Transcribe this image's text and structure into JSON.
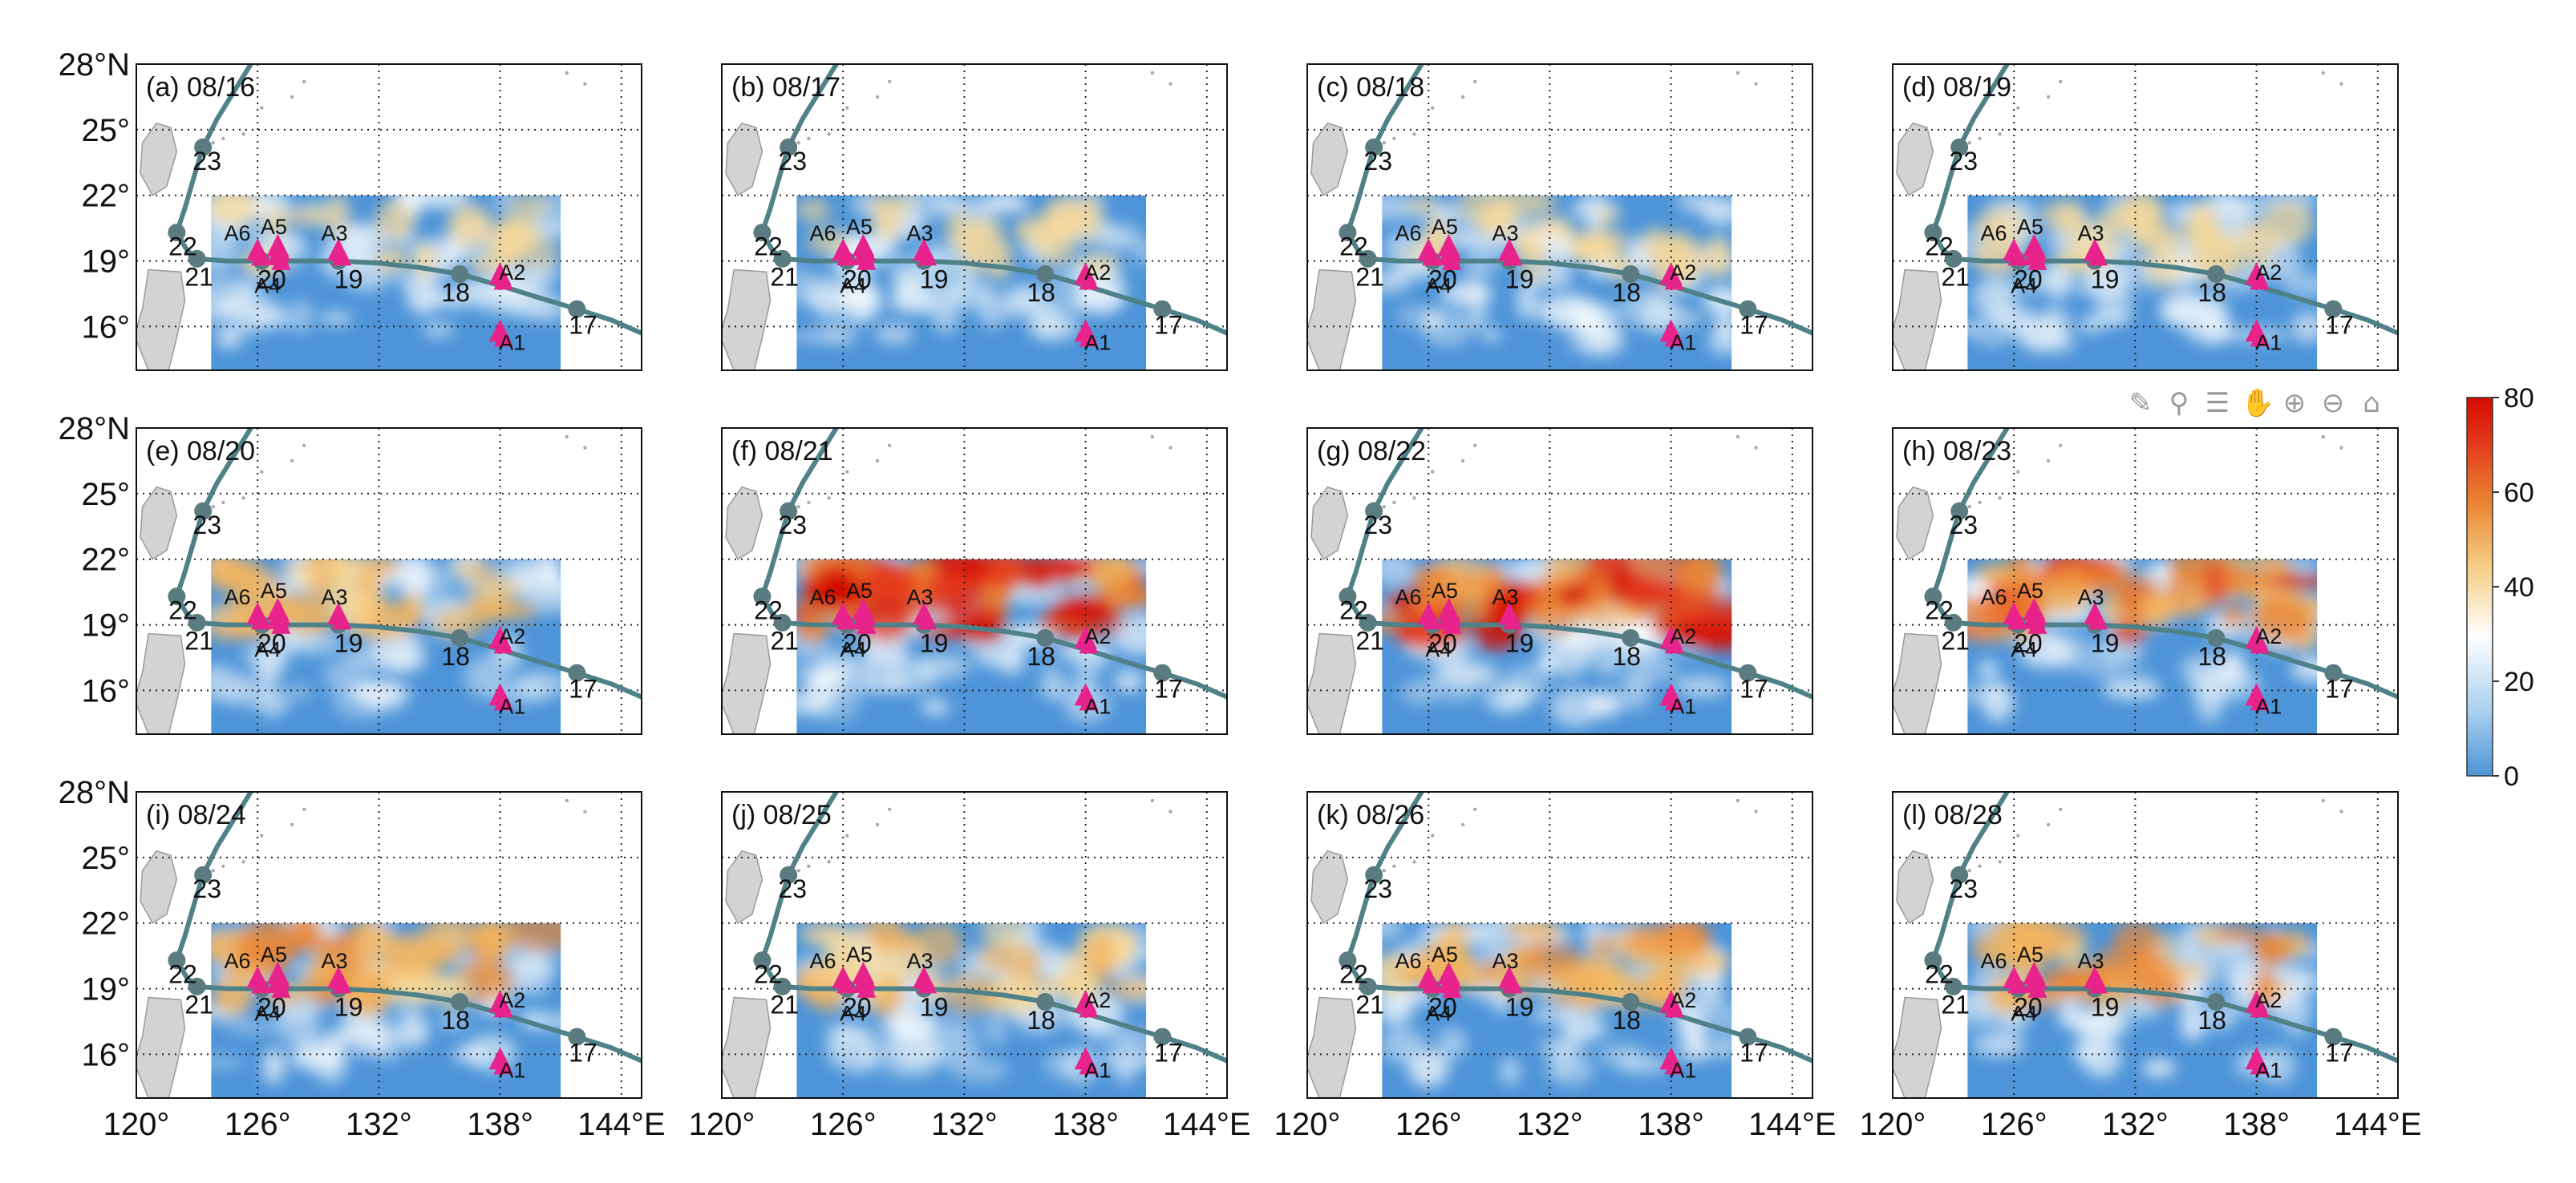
{
  "colors": {
    "track": "#4e8188",
    "track_point": "#5a7b7f",
    "buoy": "#e8238c",
    "land": "#d3d3d3",
    "land_edge": "#9a9a9a",
    "field_low": "#4d94d8"
  },
  "toolbar": {
    "icons": [
      "brush-icon",
      "pin-icon",
      "legend-icon",
      "pan-hand-icon",
      "zoom-in-icon",
      "zoom-out-icon",
      "home-icon"
    ]
  },
  "chart_data": {
    "type": "heatmap",
    "title": "",
    "panels": [
      {
        "label": "(a) 08/16",
        "intensity": 0.12
      },
      {
        "label": "(b) 08/17",
        "intensity": 0.1
      },
      {
        "label": "(c) 08/18",
        "intensity": 0.22
      },
      {
        "label": "(d) 08/19",
        "intensity": 0.18
      },
      {
        "label": "(e) 08/20",
        "intensity": 0.45
      },
      {
        "label": "(f) 08/21",
        "intensity": 0.95
      },
      {
        "label": "(g) 08/22",
        "intensity": 0.9
      },
      {
        "label": "(h) 08/23",
        "intensity": 0.7
      },
      {
        "label": "(i) 08/24",
        "intensity": 0.55
      },
      {
        "label": "(j) 08/25",
        "intensity": 0.4
      },
      {
        "label": "(k) 08/26",
        "intensity": 0.48
      },
      {
        "label": "(l) 08/28",
        "intensity": 0.52
      }
    ],
    "x_axis": {
      "range": [
        120,
        145
      ],
      "ticks": [
        120,
        126,
        132,
        138,
        144
      ],
      "tick_labels": [
        "120°",
        "126°",
        "132°",
        "138°",
        "144°E"
      ]
    },
    "y_axis": {
      "range": [
        14,
        28
      ],
      "ticks": [
        16,
        19,
        22,
        25,
        28
      ],
      "tick_labels": [
        "16°",
        "19°",
        "22°",
        "25°",
        "28°N"
      ]
    },
    "field_extent": {
      "lon": [
        123.7,
        141
      ],
      "lat": [
        14,
        22
      ]
    },
    "typhoon_track": {
      "lon": [
        145.5,
        143.5,
        141.8,
        140.0,
        137.9,
        136.0,
        134.0,
        132.0,
        130.0,
        128.0,
        126.2,
        124.5,
        123.0,
        122.5,
        122.0,
        122.4,
        122.9,
        123.3,
        124.0,
        125.0,
        126.0
      ],
      "lat": [
        15.5,
        16.3,
        16.8,
        17.3,
        17.9,
        18.4,
        18.7,
        18.9,
        19.0,
        19.0,
        19.0,
        19.0,
        19.1,
        19.5,
        20.3,
        21.4,
        23.0,
        24.2,
        25.5,
        27.0,
        28.5
      ]
    },
    "day_markers": [
      {
        "day": "17",
        "lon": 141.8,
        "lat": 16.8,
        "dlon": 0.3,
        "dlat": -0.7
      },
      {
        "day": "18",
        "lon": 136.0,
        "lat": 18.4,
        "dlon": -0.2,
        "dlat": -0.8
      },
      {
        "day": "19",
        "lon": 130.0,
        "lat": 19.0,
        "dlon": 0.5,
        "dlat": -0.8
      },
      {
        "day": "20",
        "lon": 126.2,
        "lat": 19.0,
        "dlon": 0.5,
        "dlat": -0.8
      },
      {
        "day": "21",
        "lon": 123.0,
        "lat": 19.1,
        "dlon": 0.1,
        "dlat": -0.8
      },
      {
        "day": "22",
        "lon": 122.0,
        "lat": 20.3,
        "dlon": 0.3,
        "dlat": -0.6
      },
      {
        "day": "23",
        "lon": 123.3,
        "lat": 24.2,
        "dlon": 0.2,
        "dlat": -0.6
      }
    ],
    "buoys": [
      {
        "name": "A1",
        "lon": 138.0,
        "lat": 15.6,
        "dlon": 0.6,
        "dlat": -0.3
      },
      {
        "name": "A2",
        "lon": 138.0,
        "lat": 18.2,
        "dlon": 0.6,
        "dlat": 0.3
      },
      {
        "name": "A3",
        "lon": 130.0,
        "lat": 19.3,
        "dlon": -0.2,
        "dlat": 1.0
      },
      {
        "name": "A4",
        "lon": 127.0,
        "lat": 19.1,
        "dlon": -0.5,
        "dlat": -1.2
      },
      {
        "name": "A5",
        "lon": 127.0,
        "lat": 19.5,
        "dlon": -0.2,
        "dlat": 1.1
      },
      {
        "name": "A6",
        "lon": 126.0,
        "lat": 19.3,
        "dlon": -1.0,
        "dlat": 1.0
      }
    ],
    "colorbar": {
      "min": 0,
      "max": 80,
      "ticks": [
        0,
        20,
        40,
        60,
        80
      ],
      "tick_labels": [
        "0",
        "20",
        "40",
        "60",
        "80"
      ],
      "colors": [
        "#4d94d8",
        "#a8d0ee",
        "#ffffff",
        "#f5cf87",
        "#eb8633",
        "#e3391c",
        "#d50a00"
      ]
    }
  }
}
